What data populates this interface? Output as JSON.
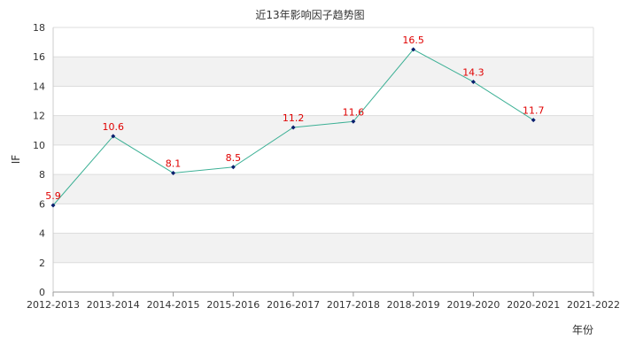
{
  "chart_data": {
    "type": "line",
    "title": "近13年影响因子趋势图",
    "xlabel": "年份",
    "ylabel": "IF",
    "categories": [
      "2012-2013",
      "2013-2014",
      "2014-2015",
      "2015-2016",
      "2016-2017",
      "2017-2018",
      "2018-2019",
      "2019-2020",
      "2020-2021",
      "2021-2022"
    ],
    "series": [
      {
        "values": [
          5.9,
          10.6,
          8.1,
          8.5,
          11.2,
          11.6,
          16.5,
          14.3,
          11.7,
          null
        ],
        "labels": [
          "5.9",
          "10.6",
          "8.1",
          "8.5",
          "11.2",
          "11.6",
          "16.5",
          "14.3",
          "11.7",
          null
        ]
      }
    ],
    "ylim": [
      0,
      18
    ],
    "yticks": [
      0,
      2,
      4,
      6,
      8,
      10,
      12,
      14,
      16,
      18
    ],
    "grid": "horizontal bands",
    "legend": "none",
    "colors": {
      "line": "#3cb095",
      "marker": "#0a1f6e",
      "data_label": "#e00000",
      "band": "#f2f2f2",
      "grid": "#dddddd"
    }
  }
}
